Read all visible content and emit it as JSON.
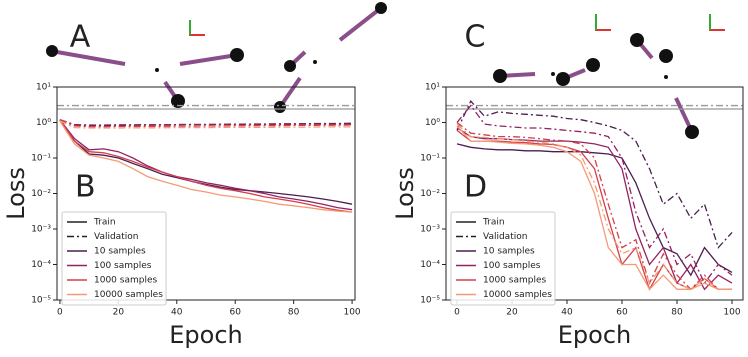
{
  "chart_data": [
    {
      "type": "line",
      "inset_label": "A",
      "label": "B",
      "xlabel": "Epoch",
      "ylabel": "Loss",
      "log_y": true,
      "xlim": [
        -1,
        101
      ],
      "ylim": [
        1e-05,
        10
      ],
      "xticks": [
        0,
        20,
        40,
        60,
        80,
        100
      ],
      "yticks": [
        {
          "value": 10,
          "label": "10¹"
        },
        {
          "value": 1,
          "label": "10⁰"
        },
        {
          "value": 0.1,
          "label": "10⁻¹"
        },
        {
          "value": 0.01,
          "label": "10⁻²"
        },
        {
          "value": 0.001,
          "label": "10⁻³"
        },
        {
          "value": 0.0001,
          "label": "10⁻⁴"
        },
        {
          "value": 1e-05,
          "label": "10⁻⁵"
        }
      ],
      "reference_lines": [
        {
          "value": 3,
          "style": "dashdot",
          "color": "#999999"
        },
        {
          "value": 2.4,
          "style": "solid",
          "color": "#999999"
        }
      ],
      "styles": [
        {
          "name": "Train",
          "style": "solid",
          "color": "#222222"
        },
        {
          "name": "Validation",
          "style": "dashdot",
          "color": "#222222"
        }
      ],
      "x": [
        0,
        5,
        10,
        15,
        20,
        25,
        30,
        35,
        40,
        45,
        50,
        55,
        60,
        65,
        70,
        75,
        80,
        85,
        90,
        95,
        100
      ],
      "series": [
        {
          "name": "10 samples",
          "color": "#4b1d50",
          "train": [
            1.2,
            0.3,
            0.13,
            0.12,
            0.1,
            0.07,
            0.05,
            0.035,
            0.028,
            0.022,
            0.018,
            0.015,
            0.013,
            0.012,
            0.011,
            0.01,
            0.009,
            0.008,
            0.007,
            0.006,
            0.005
          ],
          "validation": [
            1.2,
            0.85,
            0.82,
            0.82,
            0.83,
            0.84,
            0.85,
            0.86,
            0.87,
            0.88,
            0.88,
            0.89,
            0.9,
            0.9,
            0.91,
            0.92,
            0.92,
            0.93,
            0.94,
            0.94,
            0.95
          ]
        },
        {
          "name": "100 samples",
          "color": "#932262",
          "train": [
            1.2,
            0.35,
            0.17,
            0.18,
            0.15,
            0.1,
            0.06,
            0.04,
            0.03,
            0.025,
            0.02,
            0.017,
            0.014,
            0.012,
            0.01,
            0.008,
            0.007,
            0.006,
            0.005,
            0.004,
            0.0035
          ],
          "validation": [
            1.2,
            0.88,
            0.85,
            0.85,
            0.86,
            0.86,
            0.87,
            0.87,
            0.87,
            0.88,
            0.88,
            0.88,
            0.88,
            0.89,
            0.89,
            0.89,
            0.89,
            0.9,
            0.9,
            0.9,
            0.9
          ]
        },
        {
          "name": "1000 samples",
          "color": "#d3404b",
          "train": [
            1.2,
            0.3,
            0.15,
            0.14,
            0.11,
            0.08,
            0.055,
            0.04,
            0.03,
            0.022,
            0.017,
            0.014,
            0.012,
            0.01,
            0.008,
            0.007,
            0.006,
            0.005,
            0.004,
            0.0034,
            0.003
          ],
          "validation": [
            1.2,
            0.8,
            0.76,
            0.76,
            0.77,
            0.77,
            0.78,
            0.78,
            0.79,
            0.79,
            0.8,
            0.8,
            0.81,
            0.81,
            0.82,
            0.82,
            0.83,
            0.83,
            0.84,
            0.84,
            0.85
          ]
        },
        {
          "name": "10000 samples",
          "color": "#f59a74",
          "train": [
            1.1,
            0.25,
            0.12,
            0.1,
            0.08,
            0.05,
            0.03,
            0.022,
            0.017,
            0.013,
            0.011,
            0.009,
            0.008,
            0.007,
            0.006,
            0.005,
            0.0045,
            0.004,
            0.0035,
            0.0032,
            0.003
          ],
          "validation": [
            1.1,
            0.72,
            0.7,
            0.7,
            0.7,
            0.71,
            0.71,
            0.71,
            0.72,
            0.72,
            0.72,
            0.73,
            0.73,
            0.73,
            0.73,
            0.74,
            0.74,
            0.74,
            0.75,
            0.75,
            0.75
          ]
        }
      ]
    },
    {
      "type": "line",
      "inset_label": "C",
      "label": "D",
      "xlabel": "Epoch",
      "ylabel": "Loss",
      "log_y": true,
      "xlim": [
        -4,
        104
      ],
      "ylim": [
        1e-05,
        10
      ],
      "xticks": [
        0,
        20,
        40,
        60,
        80,
        100
      ],
      "yticks": [
        {
          "value": 10,
          "label": "10¹"
        },
        {
          "value": 1,
          "label": "10⁰"
        },
        {
          "value": 0.1,
          "label": "10⁻¹"
        },
        {
          "value": 0.01,
          "label": "10⁻²"
        },
        {
          "value": 0.001,
          "label": "10⁻³"
        },
        {
          "value": 0.0001,
          "label": "10⁻⁴"
        },
        {
          "value": 1e-05,
          "label": "10⁻⁵"
        }
      ],
      "reference_lines": [
        {
          "value": 3,
          "style": "dashdot",
          "color": "#999999"
        },
        {
          "value": 2.4,
          "style": "solid",
          "color": "#999999"
        }
      ],
      "styles": [
        {
          "name": "Train",
          "style": "solid",
          "color": "#222222"
        },
        {
          "name": "Validation",
          "style": "dashdot",
          "color": "#222222"
        }
      ],
      "x": [
        0,
        5,
        10,
        15,
        20,
        25,
        30,
        35,
        40,
        45,
        50,
        55,
        60,
        65,
        70,
        75,
        80,
        85,
        90,
        95,
        100
      ],
      "series": [
        {
          "name": "10 samples",
          "color": "#4b1d50",
          "train": [
            0.25,
            0.2,
            0.18,
            0.17,
            0.17,
            0.16,
            0.16,
            0.15,
            0.15,
            0.15,
            0.14,
            0.13,
            0.1,
            0.02,
            0.002,
            0.0003,
            0.0002,
            5e-05,
            0.0003,
            0.0001,
            6e-05
          ],
          "validation": [
            0.6,
            4,
            1.5,
            2,
            1.8,
            1.7,
            1.6,
            1.5,
            1.3,
            1.2,
            1,
            0.8,
            0.6,
            0.3,
            0.05,
            0.005,
            0.01,
            0.002,
            0.005,
            0.0003,
            0.0008
          ]
        },
        {
          "name": "100 samples",
          "color": "#932262",
          "train": [
            0.7,
            0.4,
            0.35,
            0.35,
            0.33,
            0.32,
            0.3,
            0.3,
            0.3,
            0.28,
            0.25,
            0.2,
            0.05,
            0.001,
            0.0001,
            0.0003,
            3e-05,
            0.0001,
            2e-05,
            5e-05,
            3e-05
          ],
          "validation": [
            1,
            3,
            0.9,
            0.8,
            0.75,
            0.7,
            0.7,
            0.65,
            0.6,
            0.55,
            0.5,
            0.4,
            0.1,
            0.003,
            0.0003,
            0.001,
            0.0001,
            0.0002,
            3e-05,
            0.0001,
            5e-05
          ]
        },
        {
          "name": "1000 samples",
          "color": "#d3404b",
          "train": [
            0.6,
            0.3,
            0.3,
            0.3,
            0.28,
            0.27,
            0.25,
            0.24,
            0.2,
            0.15,
            0.05,
            0.002,
            0.0001,
            0.0003,
            2e-05,
            0.0001,
            3e-05,
            2e-05,
            4e-05,
            2e-05,
            2e-05
          ],
          "validation": [
            1,
            0.5,
            0.45,
            0.4,
            0.4,
            0.38,
            0.35,
            0.32,
            0.3,
            0.25,
            0.1,
            0.005,
            0.0003,
            0.0005,
            3e-05,
            0.0002,
            5e-05,
            2e-05,
            5e-05,
            2e-05,
            2e-05
          ]
        },
        {
          "name": "10000 samples",
          "color": "#f59a74",
          "train": [
            0.8,
            0.3,
            0.3,
            0.28,
            0.26,
            0.25,
            0.23,
            0.2,
            0.15,
            0.08,
            0.01,
            0.0003,
            0.0001,
            0.0001,
            2e-05,
            5e-05,
            2e-05,
            2e-05,
            3e-05,
            2e-05,
            2e-05
          ],
          "validation": [
            0.9,
            0.4,
            0.38,
            0.35,
            0.33,
            0.3,
            0.28,
            0.25,
            0.2,
            0.12,
            0.02,
            0.001,
            0.0002,
            0.0003,
            3e-05,
            0.0001,
            3e-05,
            2e-05,
            4e-05,
            2e-05,
            2e-05
          ]
        }
      ]
    }
  ]
}
